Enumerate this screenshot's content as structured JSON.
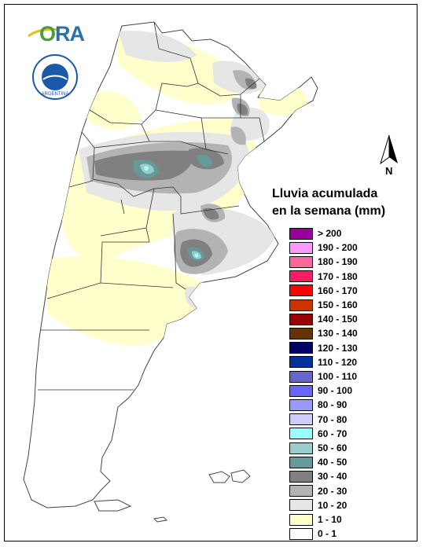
{
  "logo": {
    "text_o": "O",
    "text_ra": "RA"
  },
  "seal_text": "ARGENTINA",
  "north_label": "N",
  "legend": {
    "title_line1": "Lluvia acumulada",
    "title_line2": "en la semana (mm)",
    "items": [
      {
        "label": "> 200",
        "color": "#990099"
      },
      {
        "label": "190 - 200",
        "color": "#ff99ff"
      },
      {
        "label": "180 - 190",
        "color": "#ff6699"
      },
      {
        "label": "170 - 180",
        "color": "#ff1a66"
      },
      {
        "label": "160 - 170",
        "color": "#ff0000"
      },
      {
        "label": "150 - 160",
        "color": "#cc3300"
      },
      {
        "label": "140 - 150",
        "color": "#990000"
      },
      {
        "label": "130 - 140",
        "color": "#663300"
      },
      {
        "label": "120 - 130",
        "color": "#000066"
      },
      {
        "label": "110 - 120",
        "color": "#003399"
      },
      {
        "label": "100 - 110",
        "color": "#6666cc"
      },
      {
        "label": "90 - 100",
        "color": "#6666ff"
      },
      {
        "label": "80 - 90",
        "color": "#9999ff"
      },
      {
        "label": "70 - 80",
        "color": "#ccccff"
      },
      {
        "label": "60 - 70",
        "color": "#99ffff"
      },
      {
        "label": "50 - 60",
        "color": "#99cccc"
      },
      {
        "label": "40 - 50",
        "color": "#669999"
      },
      {
        "label": "30 - 40",
        "color": "#808080"
      },
      {
        "label": "20 - 30",
        "color": "#b3b3b3"
      },
      {
        "label": "10 - 20",
        "color": "#e6e6e6"
      },
      {
        "label": "1 - 10",
        "color": "#ffffcc"
      },
      {
        "label": "0 - 1",
        "color": "#ffffff"
      }
    ]
  }
}
